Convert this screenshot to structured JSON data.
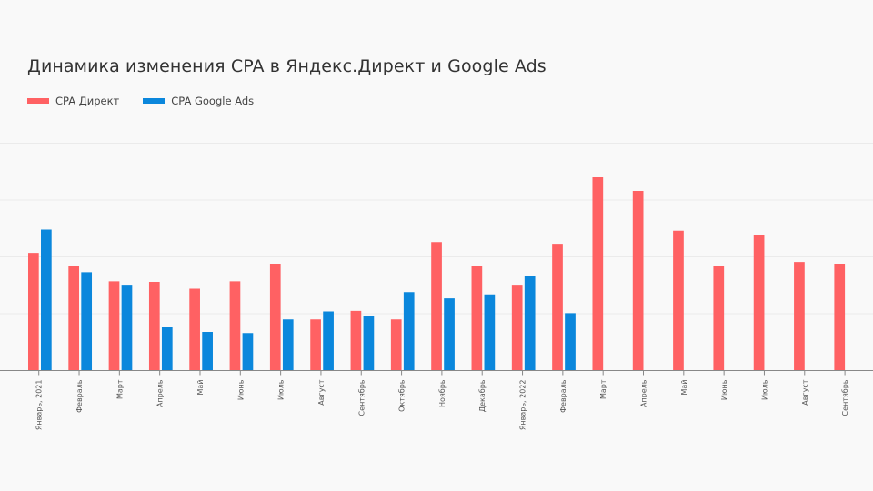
{
  "chart_data": {
    "type": "bar",
    "title": "Динамика изменения CPA в Яндекс.Директ и Google Ads",
    "xlabel": "",
    "ylabel": "",
    "ylim": [
      0,
      4
    ],
    "grid": true,
    "legend_position": "top-left",
    "categories": [
      "Январь, 2021",
      "Февраль",
      "Март",
      "Апрель",
      "Май",
      "Июнь",
      "Июль",
      "Август",
      "Сентябрь",
      "Октябрь",
      "Ноябрь",
      "Декабрь",
      "Январь, 2022",
      "Февраль",
      "Март",
      "Апрель",
      "Май",
      "Июнь",
      "Июль",
      "Август",
      "Сентябрь"
    ],
    "series": [
      {
        "name": "CPA Директ",
        "color": "#ff6163",
        "values": [
          2.07,
          1.84,
          1.57,
          1.56,
          1.44,
          1.57,
          1.88,
          0.9,
          1.05,
          0.9,
          2.26,
          1.84,
          1.51,
          2.23,
          3.4,
          3.16,
          2.46,
          1.84,
          2.39,
          1.91,
          1.88
        ]
      },
      {
        "name": "CPA Google Ads",
        "color": "#0b87dc",
        "values": [
          2.48,
          1.73,
          1.51,
          0.76,
          0.68,
          0.66,
          0.9,
          1.04,
          0.96,
          1.38,
          1.27,
          1.34,
          1.67,
          1.01,
          null,
          null,
          null,
          null,
          null,
          null,
          null
        ]
      }
    ]
  }
}
